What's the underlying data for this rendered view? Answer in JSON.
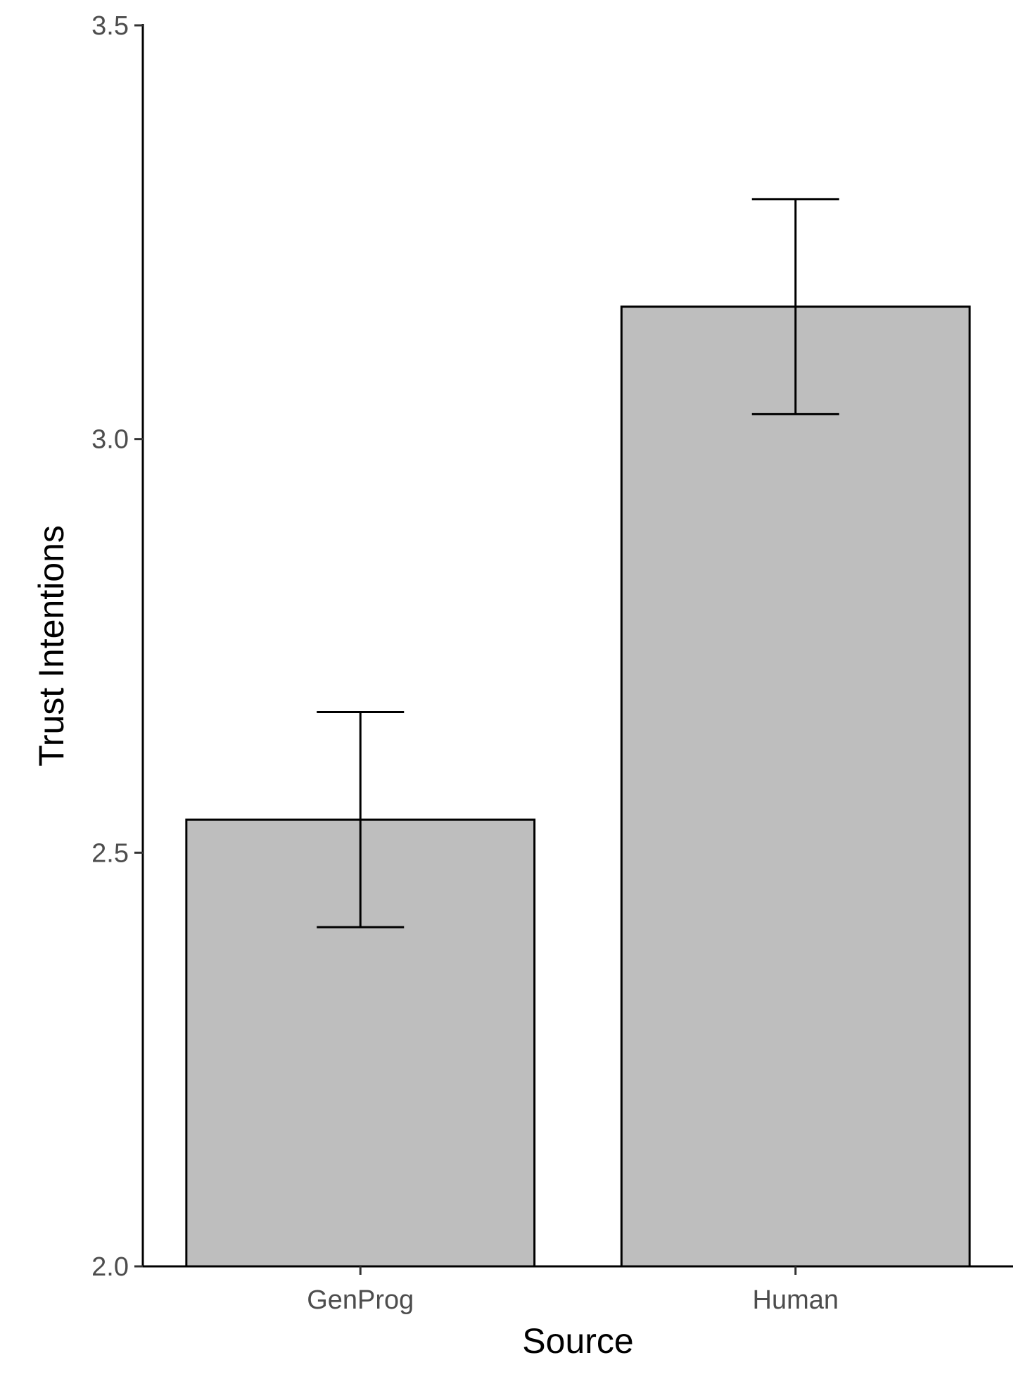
{
  "chart_data": {
    "type": "bar",
    "title": "",
    "xlabel": "Source",
    "ylabel": "Trust Intentions",
    "categories": [
      "GenProg",
      "Human"
    ],
    "values": [
      2.54,
      3.16
    ],
    "error_bars": {
      "lower": [
        2.41,
        3.03
      ],
      "upper": [
        2.67,
        3.29
      ]
    },
    "ylim": [
      2.0,
      3.5
    ],
    "yticks": [
      "2.0",
      "2.5",
      "3.0",
      "3.5"
    ],
    "ytick_values": [
      2.0,
      2.5,
      3.0,
      3.5
    ],
    "grid": false,
    "legend": "none",
    "colors": {
      "bar_fill": "#bebebe",
      "bar_stroke": "#000000",
      "axis": "#000000",
      "tick_text": "#4d4d4d"
    }
  }
}
